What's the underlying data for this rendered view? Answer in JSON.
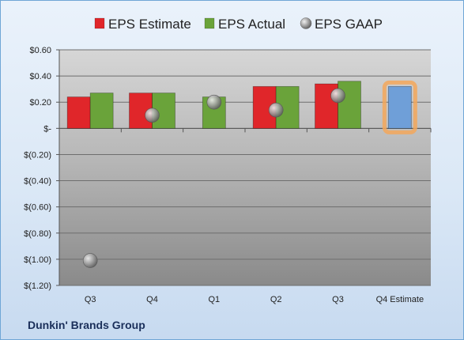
{
  "footer": {
    "company": "Dunkin' Brands Group"
  },
  "colors": {
    "estimate": "#e0262a",
    "actual": "#6aa33a",
    "gaap": "#9a9a9a",
    "forecast": "#6f9fd8",
    "highlight": "#f3a75a"
  },
  "chart_data": {
    "type": "bar",
    "title": "",
    "categories": [
      "Q3",
      "Q4",
      "Q1",
      "Q2",
      "Q3",
      "Q4 Estimate"
    ],
    "ylim": [
      -1.2,
      0.6
    ],
    "yticks": [
      0.6,
      0.4,
      0.2,
      0,
      -0.2,
      -0.4,
      -0.6,
      -0.8,
      -1.0,
      -1.2
    ],
    "ytick_labels": [
      "$0.60",
      "$0.40",
      "$0.20",
      "$-",
      "$(0.20)",
      "$(0.40)",
      "$(0.60)",
      "$(0.80)",
      "$(1.00)",
      "$(1.20)"
    ],
    "grid": true,
    "legend_position": "top",
    "series": [
      {
        "name": "EPS Estimate",
        "kind": "bar",
        "values": [
          0.24,
          0.27,
          null,
          0.32,
          0.34,
          null
        ]
      },
      {
        "name": "EPS Actual",
        "kind": "bar",
        "values": [
          0.27,
          0.27,
          0.24,
          0.32,
          0.36,
          null
        ]
      },
      {
        "name": "EPS GAAP",
        "kind": "marker",
        "values": [
          -1.01,
          0.1,
          0.2,
          0.14,
          0.25,
          null
        ]
      }
    ],
    "forecast": {
      "category": "Q4 Estimate",
      "value": 0.32
    }
  }
}
